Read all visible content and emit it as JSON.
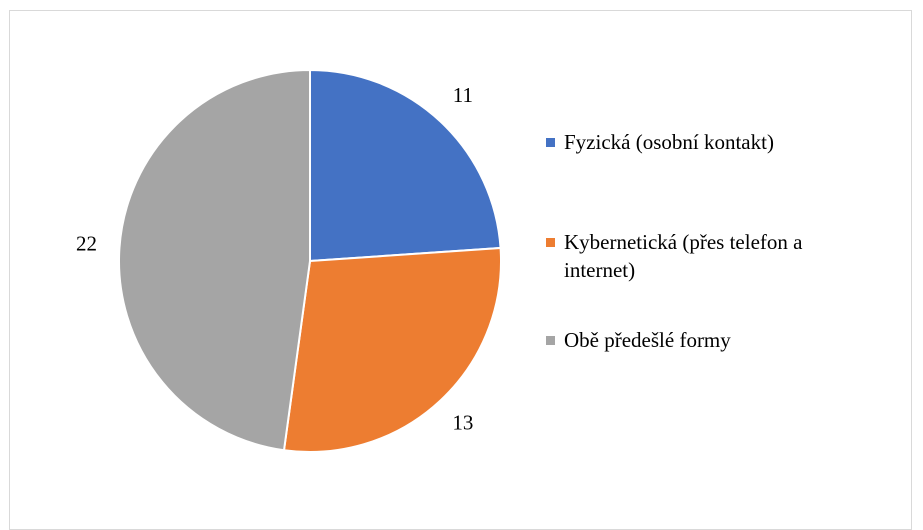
{
  "chart_data": {
    "type": "pie",
    "categories": [
      "Fyzická (osobní kontakt)",
      "Kybernetická (přes telefon a internet)",
      "Obě předešlé formy"
    ],
    "values": [
      11,
      13,
      22
    ],
    "colors": [
      "#4472c4",
      "#ed7d31",
      "#a5a5a5"
    ],
    "legend": "right"
  }
}
